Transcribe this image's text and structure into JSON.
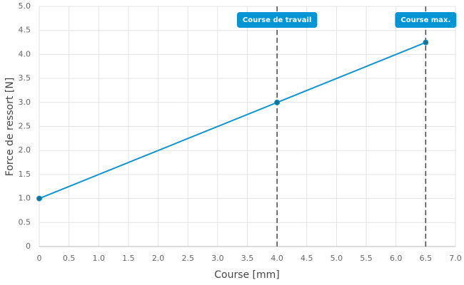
{
  "chart_data": {
    "type": "line",
    "x_label": "Course [mm]",
    "y_label": "Force de ressort [N]",
    "x": [
      0,
      4,
      6.5
    ],
    "values": [
      1.0,
      3.0,
      4.25
    ],
    "color": "#0f94d2",
    "xlim": [
      0,
      7
    ],
    "ylim": [
      0,
      5
    ],
    "xticks": [
      0,
      0.5,
      {
        "value": 1,
        "label": "1.0"
      },
      1.5,
      {
        "value": 2,
        "label": "2.0"
      },
      2.5,
      {
        "value": 3,
        "label": "3.0"
      },
      3.5,
      {
        "value": 4,
        "label": "4.0"
      },
      4.5,
      {
        "value": 5,
        "label": "5.0"
      },
      5.5,
      {
        "value": 6,
        "label": "6.0"
      },
      6.5,
      {
        "value": 7,
        "label": "7.0"
      }
    ],
    "yticks": [
      0,
      0.5,
      {
        "value": 1,
        "label": "1.0"
      },
      1.5,
      {
        "value": 2,
        "label": "2.0"
      },
      2.5,
      {
        "value": 3,
        "label": "3.0"
      },
      3.5,
      {
        "value": 4,
        "label": "4.0"
      },
      4.5,
      {
        "value": 5,
        "label": "5.0"
      }
    ],
    "grid": true,
    "annotations": [
      {
        "x": 4,
        "label": "Course de travail"
      },
      {
        "x": 6.5,
        "label": "Course max."
      }
    ]
  }
}
